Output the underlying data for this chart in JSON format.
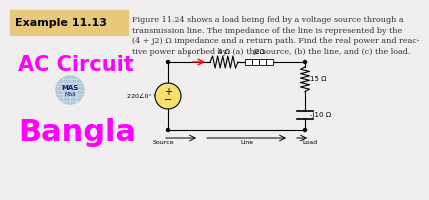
{
  "bg_color": "#f0eeee",
  "header_color": "#e8c87a",
  "header_text": "Example 11.13",
  "header_fontsize": 8,
  "body_text": "Figure 11.24 shows a load being fed by a voltage source through a\ntransmission line. The impedance of the line is represented by the\n(4 + j2) Ω impedance and a return path. Find the real power and reac-\ntive power absorbed by: (a) the source, (b) the line, and (c) the load.",
  "body_fontsize": 5.8,
  "ac_circuit_text": "AC Circuit",
  "ac_circuit_color": "#ff00ff",
  "ac_circuit_fontsize": 15,
  "bangla_text": "Bangla",
  "bangla_color": "#ff00ff",
  "bangla_fontsize": 22,
  "circuit_voltage": "220∠0° V rms",
  "circuit_r1": "4 Ω",
  "circuit_r2": "j2Ω",
  "circuit_r3": "15 Ω",
  "circuit_r4": "-j10 Ω",
  "source_label": "Source",
  "line_label": "Line",
  "load_label": "Load",
  "arrow_label": "I"
}
